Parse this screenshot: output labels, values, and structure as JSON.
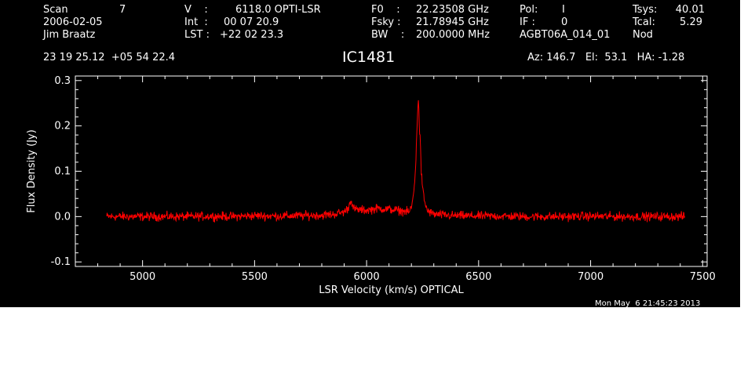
{
  "header": {
    "scan_label": "Scan",
    "scan_value": "7",
    "date": "2006-02-05",
    "observer": "Jim Braatz",
    "v_label": "V    :",
    "v_value": "6118.0 OPTI-LSR",
    "int_label": "Int  :",
    "int_value": "00 07 20.9",
    "lst_label": "LST :",
    "lst_value": "+22 02 23.3",
    "f0_label": "F0    :",
    "f0_value": "22.23508 GHz",
    "fsky_label": "Fsky :",
    "fsky_value": "21.78945 GHz",
    "bw_label": "BW    :",
    "bw_value": "200.0000 MHz",
    "pol_label": "Pol:",
    "pol_value": "I",
    "if_label": "IF :",
    "if_value": "0",
    "project": "AGBT06A_014_01",
    "tsys_label": "Tsys:",
    "tsys_value": "40.01",
    "tcal_label": "Tcal:",
    "tcal_value": "5.29",
    "mode": "Nod",
    "coords": "23 19 25.12  +05 54 22.4",
    "source": "IC1481",
    "az_el_ha": "Az: 146.7   El:  53.1   HA: -1.28"
  },
  "footer_timestamp": "Mon May  6 21:45:23 2013",
  "colors": {
    "background": "#000000",
    "axes": "#ffffff",
    "trace": "#ff0000",
    "page": "#ffffff"
  },
  "chart_data": {
    "type": "line",
    "xlabel": "LSR Velocity (km/s) OPTICAL",
    "ylabel": "Flux Density (Jy)",
    "xlim": [
      4700,
      7520
    ],
    "ylim": [
      -0.11,
      0.31
    ],
    "xticks": [
      5000,
      5500,
      6000,
      6500,
      7000,
      7500
    ],
    "yticks": [
      -0.1,
      0.0,
      0.1,
      0.2,
      0.3
    ],
    "xtick_labels": [
      "5000",
      "5500",
      "6000",
      "6500",
      "7000",
      "7500"
    ],
    "ytick_labels": [
      "-0.1",
      "0.0",
      "0.1",
      "0.2",
      "0.3"
    ],
    "series": [
      {
        "x": [
          4840,
          4900,
          5000,
          5100,
          5200,
          5300,
          5400,
          5500,
          5600,
          5700,
          5800,
          5850,
          5900,
          5920,
          5930,
          5940,
          5960,
          6000,
          6050,
          6100,
          6150,
          6190,
          6200,
          6210,
          6220,
          6228,
          6232,
          6236,
          6240,
          6244,
          6250,
          6260,
          6270,
          6280,
          6300,
          6350,
          6400,
          6500,
          6600,
          6700,
          6800,
          6900,
          7000,
          7100,
          7200,
          7300,
          7400,
          7420
        ],
        "y": [
          0.0,
          0.0,
          0.0,
          0.0,
          0.0,
          0.001,
          0.0,
          0.002,
          0.001,
          0.002,
          0.003,
          0.005,
          0.01,
          0.02,
          0.04,
          0.018,
          0.015,
          0.014,
          0.018,
          0.016,
          0.013,
          0.01,
          0.02,
          0.05,
          0.12,
          0.24,
          0.265,
          0.18,
          0.17,
          0.1,
          0.06,
          0.03,
          0.015,
          0.01,
          0.005,
          0.003,
          0.002,
          0.001,
          0.001,
          0.0,
          0.0,
          0.0,
          0.001,
          0.0,
          0.0,
          0.0,
          0.0,
          0.0
        ],
        "noise_rms": 0.006
      }
    ]
  }
}
